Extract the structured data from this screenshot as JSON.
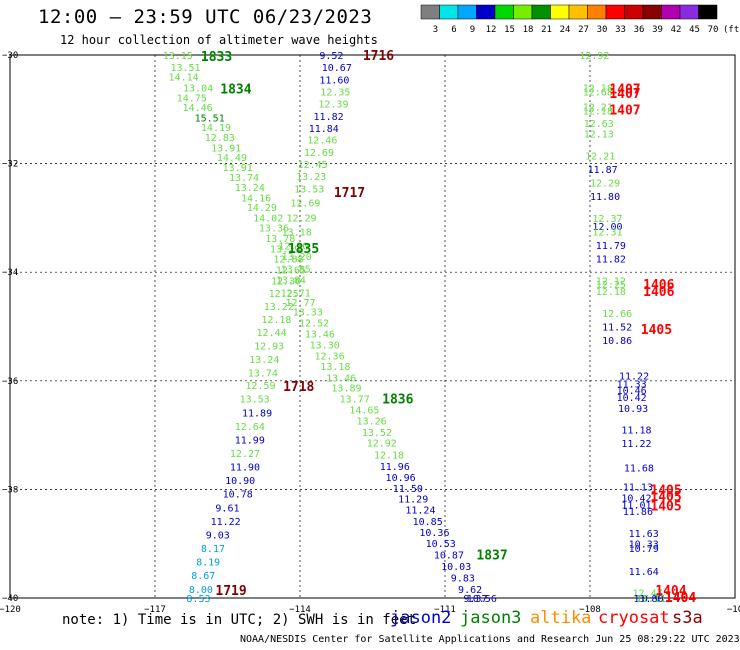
{
  "header": {
    "title": "12:00 – 23:59 UTC 06/23/2023",
    "subtitle": "12 hour collection of altimeter wave heights"
  },
  "colorbar": {
    "labels": [
      "3",
      "6",
      "9",
      "12",
      "15",
      "18",
      "21",
      "24",
      "27",
      "30",
      "33",
      "36",
      "39",
      "42",
      "45",
      "70"
    ],
    "unit": "(ft)",
    "colors": [
      "#7f7f7f",
      "#00e5e5",
      "#00a8ff",
      "#0000cc",
      "#00d800",
      "#76ee00",
      "#009000",
      "#ffff00",
      "#ffc000",
      "#ff8000",
      "#ff0000",
      "#cc0000",
      "#880000",
      "#b000b0",
      "#8a2be2",
      "#000000"
    ]
  },
  "axes": {
    "x_ticks": [
      "−120",
      "−117",
      "−114",
      "−111",
      "−108",
      "−10"
    ],
    "y_ticks": [
      "−30",
      "−32",
      "−34",
      "−36",
      "−38",
      "−40"
    ]
  },
  "footer": {
    "note": "note:  1) Time is in UTC; 2) SWH is in feet",
    "satellites": [
      {
        "name": "jason2",
        "color": "#0000cc"
      },
      {
        "name": "jason3",
        "color": "#008000"
      },
      {
        "name": "altika",
        "color": "#ff8c00"
      },
      {
        "name": "cryosat",
        "color": "#ff0000"
      },
      {
        "name": "s3a",
        "color": "#8b0000"
      }
    ],
    "credit": "NOAA/NESDIS Center for Satellite Applications and Research   Jun 25 08:29:22 UTC 2023"
  },
  "colors": {
    "light_green": "#66dd44",
    "green": "#008000",
    "blue": "#0000cc",
    "cyan": "#00a0e0",
    "red": "#ff0000",
    "dark_red": "#800000"
  },
  "map_labels": [
    {
      "t": "13.15",
      "lon": -116.84,
      "lat": -30.0,
      "c": "light_green"
    },
    {
      "t": "13.51",
      "lon": -116.68,
      "lat": -30.22,
      "c": "light_green"
    },
    {
      "t": "14.14",
      "lon": -116.72,
      "lat": -30.4,
      "c": "light_green"
    },
    {
      "t": "13.04",
      "lon": -116.42,
      "lat": -30.6,
      "c": "light_green"
    },
    {
      "t": "14.75",
      "lon": -116.55,
      "lat": -30.78,
      "c": "light_green"
    },
    {
      "t": "14.46",
      "lon": -116.43,
      "lat": -30.96,
      "c": "light_green"
    },
    {
      "t": "15.51",
      "lon": -116.18,
      "lat": -31.15,
      "c": "green"
    },
    {
      "t": "14.19",
      "lon": -116.05,
      "lat": -31.33,
      "c": "light_green"
    },
    {
      "t": "12.83",
      "lon": -115.97,
      "lat": -31.51,
      "c": "light_green"
    },
    {
      "t": "13.91",
      "lon": -115.84,
      "lat": -31.7,
      "c": "light_green"
    },
    {
      "t": "14.49",
      "lon": -115.72,
      "lat": -31.88,
      "c": "light_green"
    },
    {
      "t": "13.91",
      "lon": -115.6,
      "lat": -32.06,
      "c": "light_green"
    },
    {
      "t": "13.74",
      "lon": -115.47,
      "lat": -32.25,
      "c": "light_green"
    },
    {
      "t": "13.24",
      "lon": -115.35,
      "lat": -32.43,
      "c": "light_green"
    },
    {
      "t": "14.16",
      "lon": -115.22,
      "lat": -32.62,
      "c": "light_green"
    },
    {
      "t": "14.29",
      "lon": -115.1,
      "lat": -32.8,
      "c": "light_green"
    },
    {
      "t": "14.02",
      "lon": -114.97,
      "lat": -32.99,
      "c": "light_green"
    },
    {
      "t": "13.36",
      "lon": -114.85,
      "lat": -33.18,
      "c": "light_green"
    },
    {
      "t": "13.78",
      "lon": -114.72,
      "lat": -33.37,
      "c": "light_green"
    },
    {
      "t": "13.29",
      "lon": -114.62,
      "lat": -33.56,
      "c": "light_green"
    },
    {
      "t": "12.88",
      "lon": -114.55,
      "lat": -33.75,
      "c": "light_green"
    },
    {
      "t": "13.85",
      "lon": -114.4,
      "lat": -33.93,
      "c": "light_green"
    },
    {
      "t": "13.84",
      "lon": -114.5,
      "lat": -34.13,
      "c": "light_green"
    },
    {
      "t": "12.71",
      "lon": -114.4,
      "lat": -34.37,
      "c": "light_green"
    },
    {
      "t": "12.77",
      "lon": -114.3,
      "lat": -34.55,
      "c": "light_green"
    },
    {
      "t": "13.33",
      "lon": -114.15,
      "lat": -34.72,
      "c": "light_green"
    },
    {
      "t": "12.52",
      "lon": -114.02,
      "lat": -34.93,
      "c": "light_green"
    },
    {
      "t": "13.46",
      "lon": -113.9,
      "lat": -35.13,
      "c": "light_green"
    },
    {
      "t": "13.30",
      "lon": -113.8,
      "lat": -35.33,
      "c": "light_green"
    },
    {
      "t": "12.36",
      "lon": -113.7,
      "lat": -35.53,
      "c": "light_green"
    },
    {
      "t": "13.18",
      "lon": -113.58,
      "lat": -35.73,
      "c": "light_green"
    },
    {
      "t": "13.46",
      "lon": -113.46,
      "lat": -35.94,
      "c": "light_green"
    },
    {
      "t": "13.89",
      "lon": -113.35,
      "lat": -36.12,
      "c": "light_green"
    },
    {
      "t": "13.77",
      "lon": -113.18,
      "lat": -36.33,
      "c": "light_green"
    },
    {
      "t": "14.65",
      "lon": -112.98,
      "lat": -36.53,
      "c": "light_green"
    },
    {
      "t": "13.26",
      "lon": -112.83,
      "lat": -36.73,
      "c": "light_green"
    },
    {
      "t": "13.52",
      "lon": -112.72,
      "lat": -36.94,
      "c": "light_green"
    },
    {
      "t": "12.92",
      "lon": -112.62,
      "lat": -37.14,
      "c": "light_green"
    },
    {
      "t": "12.18",
      "lon": -112.47,
      "lat": -37.36,
      "c": "light_green"
    },
    {
      "t": "11.96",
      "lon": -112.35,
      "lat": -37.57,
      "c": "blue"
    },
    {
      "t": "10.96",
      "lon": -112.23,
      "lat": -37.77,
      "c": "blue"
    },
    {
      "t": "11.50",
      "lon": -112.08,
      "lat": -37.97,
      "c": "blue"
    },
    {
      "t": "11.29",
      "lon": -111.97,
      "lat": -38.17,
      "c": "blue"
    },
    {
      "t": "11.24",
      "lon": -111.82,
      "lat": -38.37,
      "c": "blue"
    },
    {
      "t": "10.85",
      "lon": -111.67,
      "lat": -38.58,
      "c": "blue"
    },
    {
      "t": "10.36",
      "lon": -111.53,
      "lat": -38.78,
      "c": "blue"
    },
    {
      "t": "10.53",
      "lon": -111.4,
      "lat": -38.99,
      "c": "blue"
    },
    {
      "t": "10.87",
      "lon": -111.23,
      "lat": -39.2,
      "c": "blue"
    },
    {
      "t": "10.03",
      "lon": -111.08,
      "lat": -39.41,
      "c": "blue"
    },
    {
      "t": "9.83",
      "lon": -110.88,
      "lat": -39.62,
      "c": "blue"
    },
    {
      "t": "9.62",
      "lon": -110.73,
      "lat": -39.83,
      "c": "blue"
    },
    {
      "t": "9.37",
      "lon": -110.62,
      "lat": -40.04,
      "c": "blue"
    },
    {
      "t": "10.56",
      "lon": -110.55,
      "lat": -40.25,
      "c": "blue"
    },
    {
      "t": "9.52",
      "lon": -113.6,
      "lat": -30.0,
      "c": "blue"
    },
    {
      "t": "10.67",
      "lon": -113.55,
      "lat": -30.22,
      "c": "blue"
    },
    {
      "t": "11.60",
      "lon": -113.6,
      "lat": -30.45,
      "c": "blue"
    },
    {
      "t": "12.35",
      "lon": -113.58,
      "lat": -30.67,
      "c": "light_green"
    },
    {
      "t": "12.39",
      "lon": -113.62,
      "lat": -30.89,
      "c": "light_green"
    },
    {
      "t": "11.82",
      "lon": -113.72,
      "lat": -31.12,
      "c": "blue"
    },
    {
      "t": "11.84",
      "lon": -113.82,
      "lat": -31.34,
      "c": "blue"
    },
    {
      "t": "12.46",
      "lon": -113.85,
      "lat": -31.56,
      "c": "light_green"
    },
    {
      "t": "12.69",
      "lon": -113.92,
      "lat": -31.79,
      "c": "light_green"
    },
    {
      "t": "12.45",
      "lon": -114.05,
      "lat": -32.01,
      "c": "light_green"
    },
    {
      "t": "13.23",
      "lon": -114.08,
      "lat": -32.23,
      "c": "light_green"
    },
    {
      "t": "13.53",
      "lon": -114.12,
      "lat": -32.46,
      "c": "light_green"
    },
    {
      "t": "12.69",
      "lon": -114.2,
      "lat": -32.72,
      "c": "light_green"
    },
    {
      "t": "12.29",
      "lon": -114.28,
      "lat": -32.99,
      "c": "light_green"
    },
    {
      "t": "13.18",
      "lon": -114.38,
      "lat": -33.25,
      "c": "light_green"
    },
    {
      "t": "12.20",
      "lon": -114.45,
      "lat": -33.51,
      "c": "light_green"
    },
    {
      "t": "13.20",
      "lon": -114.38,
      "lat": -33.7,
      "c": "light_green"
    },
    {
      "t": "12.65",
      "lon": -114.5,
      "lat": -33.95,
      "c": "light_green"
    },
    {
      "t": "12.30",
      "lon": -114.6,
      "lat": -34.15,
      "c": "light_green"
    },
    {
      "t": "12.25",
      "lon": -114.65,
      "lat": -34.38,
      "c": "light_green"
    },
    {
      "t": "13.22",
      "lon": -114.75,
      "lat": -34.62,
      "c": "light_green"
    },
    {
      "t": "12.18",
      "lon": -114.8,
      "lat": -34.86,
      "c": "light_green"
    },
    {
      "t": "12.44",
      "lon": -114.9,
      "lat": -35.1,
      "c": "light_green"
    },
    {
      "t": "12.93",
      "lon": -114.95,
      "lat": -35.35,
      "c": "light_green"
    },
    {
      "t": "13.24",
      "lon": -115.05,
      "lat": -35.6,
      "c": "light_green"
    },
    {
      "t": "13.74",
      "lon": -115.08,
      "lat": -35.85,
      "c": "light_green"
    },
    {
      "t": "12.59",
      "lon": -115.13,
      "lat": -36.08,
      "c": "light_green"
    },
    {
      "t": "13.53",
      "lon": -115.25,
      "lat": -36.33,
      "c": "light_green"
    },
    {
      "t": "11.89",
      "lon": -115.2,
      "lat": -36.58,
      "c": "blue"
    },
    {
      "t": "12.64",
      "lon": -115.35,
      "lat": -36.83,
      "c": "light_green"
    },
    {
      "t": "11.99",
      "lon": -115.35,
      "lat": -37.08,
      "c": "blue"
    },
    {
      "t": "12.27",
      "lon": -115.45,
      "lat": -37.33,
      "c": "light_green"
    },
    {
      "t": "11.90",
      "lon": -115.45,
      "lat": -37.58,
      "c": "blue"
    },
    {
      "t": "10.90",
      "lon": -115.55,
      "lat": -37.83,
      "c": "blue"
    },
    {
      "t": "10.78",
      "lon": -115.6,
      "lat": -38.08,
      "c": "blue"
    },
    {
      "t": "9.61",
      "lon": -115.75,
      "lat": -38.33,
      "c": "blue"
    },
    {
      "t": "11.22",
      "lon": -115.85,
      "lat": -38.58,
      "c": "blue"
    },
    {
      "t": "9.03",
      "lon": -115.95,
      "lat": -38.83,
      "c": "blue"
    },
    {
      "t": "8.17",
      "lon": -116.05,
      "lat": -39.08,
      "c": "cyan"
    },
    {
      "t": "8.19",
      "lon": -116.15,
      "lat": -39.33,
      "c": "cyan"
    },
    {
      "t": "8.67",
      "lon": -116.25,
      "lat": -39.58,
      "c": "cyan"
    },
    {
      "t": "8.00",
      "lon": -116.3,
      "lat": -39.83,
      "c": "cyan"
    },
    {
      "t": "8.53",
      "lon": -116.35,
      "lat": -40.08,
      "c": "cyan"
    },
    {
      "t": "12.92",
      "lon": -108.22,
      "lat": -30.0,
      "c": "light_green"
    },
    {
      "t": "12.18",
      "lon": -108.15,
      "lat": -30.6,
      "c": "light_green"
    },
    {
      "t": "12.68",
      "lon": -108.15,
      "lat": -30.67,
      "c": "light_green"
    },
    {
      "t": "12.21",
      "lon": -108.15,
      "lat": -30.95,
      "c": "light_green"
    },
    {
      "t": "12.18",
      "lon": -108.15,
      "lat": -31.02,
      "c": "light_green"
    },
    {
      "t": "12.63",
      "lon": -108.13,
      "lat": -31.25,
      "c": "light_green"
    },
    {
      "t": "12.13",
      "lon": -108.13,
      "lat": -31.45,
      "c": "light_green"
    },
    {
      "t": "12.21",
      "lon": -108.1,
      "lat": -31.85,
      "c": "light_green"
    },
    {
      "t": "11.87",
      "lon": -108.05,
      "lat": -32.1,
      "c": "blue"
    },
    {
      "t": "12.29",
      "lon": -108.0,
      "lat": -32.35,
      "c": "light_green"
    },
    {
      "t": "11.80",
      "lon": -108.0,
      "lat": -32.6,
      "c": "blue"
    },
    {
      "t": "12.37",
      "lon": -107.95,
      "lat": -33.0,
      "c": "light_green"
    },
    {
      "t": "12.00",
      "lon": -107.95,
      "lat": -33.15,
      "c": "blue"
    },
    {
      "t": "12.31",
      "lon": -107.95,
      "lat": -33.25,
      "c": "light_green"
    },
    {
      "t": "11.79",
      "lon": -107.88,
      "lat": -33.5,
      "c": "blue"
    },
    {
      "t": "11.82",
      "lon": -107.88,
      "lat": -33.75,
      "c": "blue"
    },
    {
      "t": "12.12",
      "lon": -107.88,
      "lat": -34.15,
      "c": "light_green"
    },
    {
      "t": "12.25",
      "lon": -107.88,
      "lat": -34.22,
      "c": "light_green"
    },
    {
      "t": "12.18",
      "lon": -107.88,
      "lat": -34.35,
      "c": "light_green"
    },
    {
      "t": "12.66",
      "lon": -107.75,
      "lat": -34.75,
      "c": "light_green"
    },
    {
      "t": "11.52",
      "lon": -107.75,
      "lat": -35.0,
      "c": "blue"
    },
    {
      "t": "10.86",
      "lon": -107.75,
      "lat": -35.25,
      "c": "blue"
    },
    {
      "t": "11.22",
      "lon": -107.4,
      "lat": -35.9,
      "c": "blue"
    },
    {
      "t": "11.33",
      "lon": -107.45,
      "lat": -36.05,
      "c": "blue"
    },
    {
      "t": "10.46",
      "lon": -107.45,
      "lat": -36.17,
      "c": "blue"
    },
    {
      "t": "10.42",
      "lon": -107.45,
      "lat": -36.3,
      "c": "blue"
    },
    {
      "t": "10.93",
      "lon": -107.42,
      "lat": -36.5,
      "c": "blue"
    },
    {
      "t": "11.18",
      "lon": -107.35,
      "lat": -36.9,
      "c": "blue"
    },
    {
      "t": "11.22",
      "lon": -107.35,
      "lat": -37.15,
      "c": "blue"
    },
    {
      "t": "11.68",
      "lon": -107.3,
      "lat": -37.6,
      "c": "blue"
    },
    {
      "t": "11.13",
      "lon": -107.32,
      "lat": -37.95,
      "c": "blue"
    },
    {
      "t": "10.42",
      "lon": -107.35,
      "lat": -38.15,
      "c": "blue"
    },
    {
      "t": "11.01",
      "lon": -107.35,
      "lat": -38.28,
      "c": "blue"
    },
    {
      "t": "11.86",
      "lon": -107.32,
      "lat": -38.4,
      "c": "blue"
    },
    {
      "t": "11.63",
      "lon": -107.2,
      "lat": -38.8,
      "c": "blue"
    },
    {
      "t": "10.33",
      "lon": -107.2,
      "lat": -39.0,
      "c": "blue"
    },
    {
      "t": "10.79",
      "lon": -107.2,
      "lat": -39.08,
      "c": "blue"
    },
    {
      "t": "11.64",
      "lon": -107.2,
      "lat": -39.5,
      "c": "blue"
    },
    {
      "t": "12.47",
      "lon": -107.12,
      "lat": -39.9,
      "c": "light_green"
    },
    {
      "t": "11.80",
      "lon": -107.1,
      "lat": -40.15,
      "c": "blue"
    },
    {
      "t": "10.91",
      "lon": -107.05,
      "lat": -40.45,
      "c": "blue"
    },
    {
      "t": "11.11",
      "lon": -107.05,
      "lat": -40.58,
      "c": "light_green"
    }
  ],
  "time_labels": [
    {
      "t": "1833",
      "lon": -116.05,
      "lat": -30.02,
      "c": "green"
    },
    {
      "t": "1834",
      "lon": -115.65,
      "lat": -30.62,
      "c": "green"
    },
    {
      "t": "1716",
      "lon": -112.7,
      "lat": -30.0,
      "c": "dark_red"
    },
    {
      "t": "1717",
      "lon": -113.3,
      "lat": -32.52,
      "c": "dark_red"
    },
    {
      "t": "1835",
      "lon": -114.25,
      "lat": -33.55,
      "c": "green"
    },
    {
      "t": "1718",
      "lon": -114.35,
      "lat": -36.1,
      "c": "dark_red"
    },
    {
      "t": "1836",
      "lon": -112.3,
      "lat": -36.33,
      "c": "green"
    },
    {
      "t": "1837",
      "lon": -110.35,
      "lat": -39.2,
      "c": "green"
    },
    {
      "t": "1719",
      "lon": -115.75,
      "lat": -39.85,
      "c": "dark_red"
    },
    {
      "t": "1407",
      "lon": -107.6,
      "lat": -30.62,
      "c": "red"
    },
    {
      "t": "1407",
      "lon": -107.6,
      "lat": -30.7,
      "c": "red"
    },
    {
      "t": "1407",
      "lon": -107.6,
      "lat": -31.0,
      "c": "red"
    },
    {
      "t": "1406",
      "lon": -106.9,
      "lat": -34.22,
      "c": "red"
    },
    {
      "t": "1406",
      "lon": -106.9,
      "lat": -34.35,
      "c": "red"
    },
    {
      "t": "1405",
      "lon": -106.95,
      "lat": -35.05,
      "c": "red"
    },
    {
      "t": "1405",
      "lon": -106.75,
      "lat": -38.0,
      "c": "red"
    },
    {
      "t": "1405",
      "lon": -106.75,
      "lat": -38.12,
      "c": "red"
    },
    {
      "t": "1405",
      "lon": -106.75,
      "lat": -38.3,
      "c": "red"
    },
    {
      "t": "1404",
      "lon": -106.65,
      "lat": -39.85,
      "c": "red"
    },
    {
      "t": "1404",
      "lon": -106.45,
      "lat": -40.45,
      "c": "red"
    },
    {
      "t": "1404",
      "lon": -106.45,
      "lat": -40.58,
      "c": "red"
    }
  ]
}
